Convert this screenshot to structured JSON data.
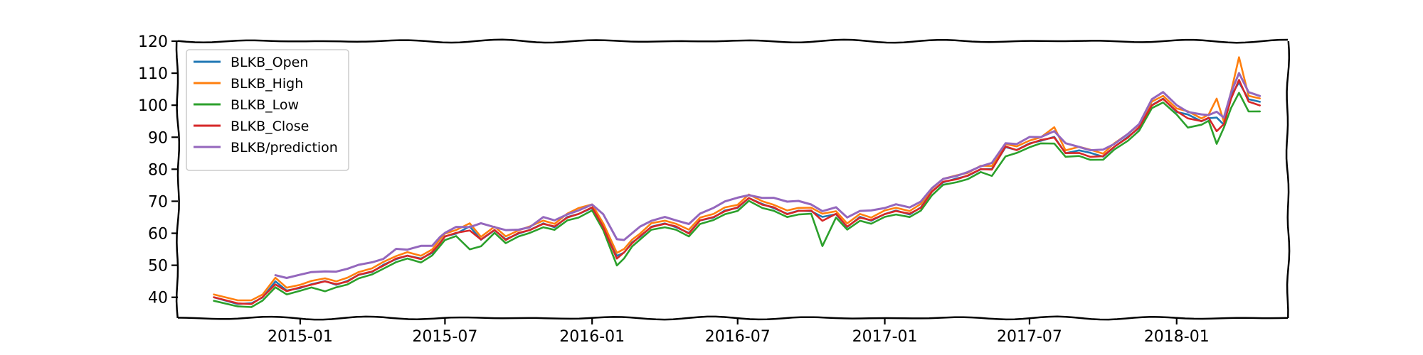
{
  "chart_data": {
    "type": "line",
    "title": "",
    "xlabel": "",
    "ylabel": "",
    "x_tick_labels": [
      "2015-01",
      "2015-07",
      "2016-01",
      "2016-07",
      "2017-01",
      "2017-07",
      "2018-01"
    ],
    "y_ticks": [
      40,
      50,
      60,
      70,
      80,
      90,
      100,
      110,
      120
    ],
    "xlim": [
      "2014-08-01",
      "2018-05-20"
    ],
    "ylim": [
      33.5,
      120
    ],
    "grid": false,
    "legend_position": "top-left",
    "x": [
      "2014-09-15",
      "2014-10-15",
      "2014-11-01",
      "2014-11-15",
      "2014-12-01",
      "2014-12-15",
      "2015-01-01",
      "2015-01-15",
      "2015-02-01",
      "2015-02-15",
      "2015-03-01",
      "2015-03-15",
      "2015-04-01",
      "2015-04-15",
      "2015-05-01",
      "2015-05-15",
      "2015-06-01",
      "2015-06-15",
      "2015-06-25",
      "2015-07-01",
      "2015-07-15",
      "2015-08-01",
      "2015-08-15",
      "2015-09-01",
      "2015-09-15",
      "2015-10-01",
      "2015-10-15",
      "2015-11-01",
      "2015-11-15",
      "2015-12-01",
      "2015-12-15",
      "2016-01-01",
      "2016-01-15",
      "2016-02-01",
      "2016-02-10",
      "2016-02-20",
      "2016-03-01",
      "2016-03-15",
      "2016-04-01",
      "2016-04-15",
      "2016-05-01",
      "2016-05-15",
      "2016-06-01",
      "2016-06-15",
      "2016-07-01",
      "2016-07-15",
      "2016-08-01",
      "2016-08-15",
      "2016-09-01",
      "2016-09-15",
      "2016-10-01",
      "2016-10-15",
      "2016-11-01",
      "2016-11-15",
      "2016-12-01",
      "2016-12-15",
      "2017-01-01",
      "2017-01-15",
      "2017-02-01",
      "2017-02-15",
      "2017-03-01",
      "2017-03-15",
      "2017-04-01",
      "2017-04-15",
      "2017-05-01",
      "2017-05-15",
      "2017-06-01",
      "2017-06-15",
      "2017-07-01",
      "2017-07-15",
      "2017-08-01",
      "2017-08-15",
      "2017-09-01",
      "2017-09-15",
      "2017-10-01",
      "2017-10-15",
      "2017-11-01",
      "2017-11-15",
      "2017-12-01",
      "2017-12-15",
      "2018-01-01",
      "2018-01-15",
      "2018-02-01",
      "2018-02-10",
      "2018-02-20",
      "2018-03-01",
      "2018-03-10",
      "2018-03-20",
      "2018-04-01",
      "2018-04-15"
    ],
    "series": [
      {
        "name": "BLKB_Open",
        "color": "#1f77b4",
        "values": [
          40,
          38,
          38,
          40,
          45,
          42,
          43,
          44,
          45,
          44,
          45,
          47,
          48,
          50,
          52,
          53,
          52,
          54,
          57,
          59,
          60,
          62,
          58,
          61,
          58,
          60,
          61,
          63,
          62,
          65,
          66,
          68,
          62,
          53,
          54,
          57,
          59,
          62,
          63,
          62,
          60,
          64,
          65,
          67,
          68,
          71,
          69,
          68,
          66,
          67,
          67,
          65,
          66,
          62,
          65,
          64,
          66,
          67,
          66,
          68,
          73,
          76,
          77,
          78,
          80,
          80,
          87,
          86,
          88,
          89,
          90,
          85,
          86,
          85,
          84,
          87,
          90,
          93,
          100,
          102,
          98,
          97,
          95,
          96,
          96,
          94,
          103,
          107,
          102,
          101
        ]
      },
      {
        "name": "BLKB_High",
        "color": "#ff7f0e",
        "values": [
          41,
          39,
          39,
          41,
          46,
          43,
          44,
          45,
          46,
          45,
          46,
          48,
          49,
          51,
          53,
          54,
          53,
          55,
          58,
          60,
          61,
          63,
          59,
          62,
          59,
          61,
          62,
          64,
          63,
          66,
          68,
          69,
          63,
          54,
          55,
          58,
          60,
          63,
          64,
          63,
          61,
          65,
          66,
          68,
          69,
          72,
          70,
          69,
          67,
          68,
          68,
          66,
          67,
          63,
          66,
          65,
          67,
          68,
          67,
          69,
          74,
          77,
          78,
          79,
          81,
          81,
          88,
          87,
          89,
          90,
          93,
          86,
          87,
          86,
          85,
          88,
          91,
          94,
          101,
          103,
          99,
          98,
          96,
          97,
          102,
          95,
          104,
          115,
          103,
          102
        ]
      },
      {
        "name": "BLKB_Low",
        "color": "#2ca02c",
        "values": [
          39,
          37,
          37,
          39,
          43,
          41,
          42,
          43,
          42,
          43,
          44,
          46,
          47,
          49,
          51,
          52,
          51,
          53,
          56,
          58,
          59,
          55,
          56,
          60,
          57,
          59,
          60,
          62,
          61,
          64,
          65,
          67,
          61,
          50,
          52,
          56,
          58,
          61,
          62,
          61,
          59,
          63,
          64,
          66,
          67,
          70,
          68,
          67,
          65,
          66,
          66,
          56,
          65,
          61,
          64,
          63,
          65,
          66,
          65,
          67,
          72,
          75,
          76,
          77,
          79,
          78,
          84,
          85,
          87,
          88,
          88,
          84,
          84,
          83,
          83,
          86,
          89,
          92,
          99,
          101,
          97,
          93,
          94,
          95,
          88,
          93,
          99,
          104,
          98,
          98
        ]
      },
      {
        "name": "BLKB_Close",
        "color": "#d62728",
        "values": [
          40,
          38,
          38,
          40,
          44,
          42,
          43,
          44,
          45,
          44,
          45,
          47,
          48,
          50,
          52,
          53,
          52,
          54,
          57,
          59,
          60,
          61,
          58,
          61,
          58,
          60,
          61,
          63,
          62,
          65,
          66,
          68,
          62,
          52,
          54,
          57,
          59,
          62,
          63,
          62,
          60,
          64,
          65,
          67,
          68,
          71,
          69,
          68,
          66,
          67,
          67,
          64,
          66,
          62,
          65,
          64,
          66,
          67,
          66,
          68,
          73,
          76,
          77,
          78,
          80,
          80,
          87,
          86,
          88,
          89,
          90,
          85,
          85,
          84,
          84,
          87,
          90,
          93,
          100,
          102,
          98,
          96,
          95,
          96,
          92,
          94,
          102,
          108,
          101,
          100
        ]
      },
      {
        "name": "BLKB/prediction",
        "color": "#9467bd",
        "values": [
          null,
          null,
          null,
          null,
          47,
          46,
          47,
          48,
          48,
          48,
          49,
          50,
          51,
          52,
          55,
          55,
          56,
          56,
          59,
          60,
          62,
          62,
          63,
          62,
          61,
          61,
          62,
          65,
          64,
          66,
          67,
          69,
          66,
          58,
          58,
          60,
          62,
          64,
          65,
          64,
          63,
          66,
          68,
          70,
          71,
          72,
          71,
          71,
          70,
          70,
          69,
          67,
          68,
          65,
          67,
          67,
          68,
          69,
          68,
          70,
          74,
          77,
          78,
          79,
          81,
          82,
          88,
          88,
          90,
          90,
          92,
          88,
          87,
          86,
          86,
          88,
          91,
          94,
          102,
          104,
          100,
          98,
          97,
          97,
          98,
          96,
          104,
          110,
          104,
          103
        ]
      }
    ]
  }
}
